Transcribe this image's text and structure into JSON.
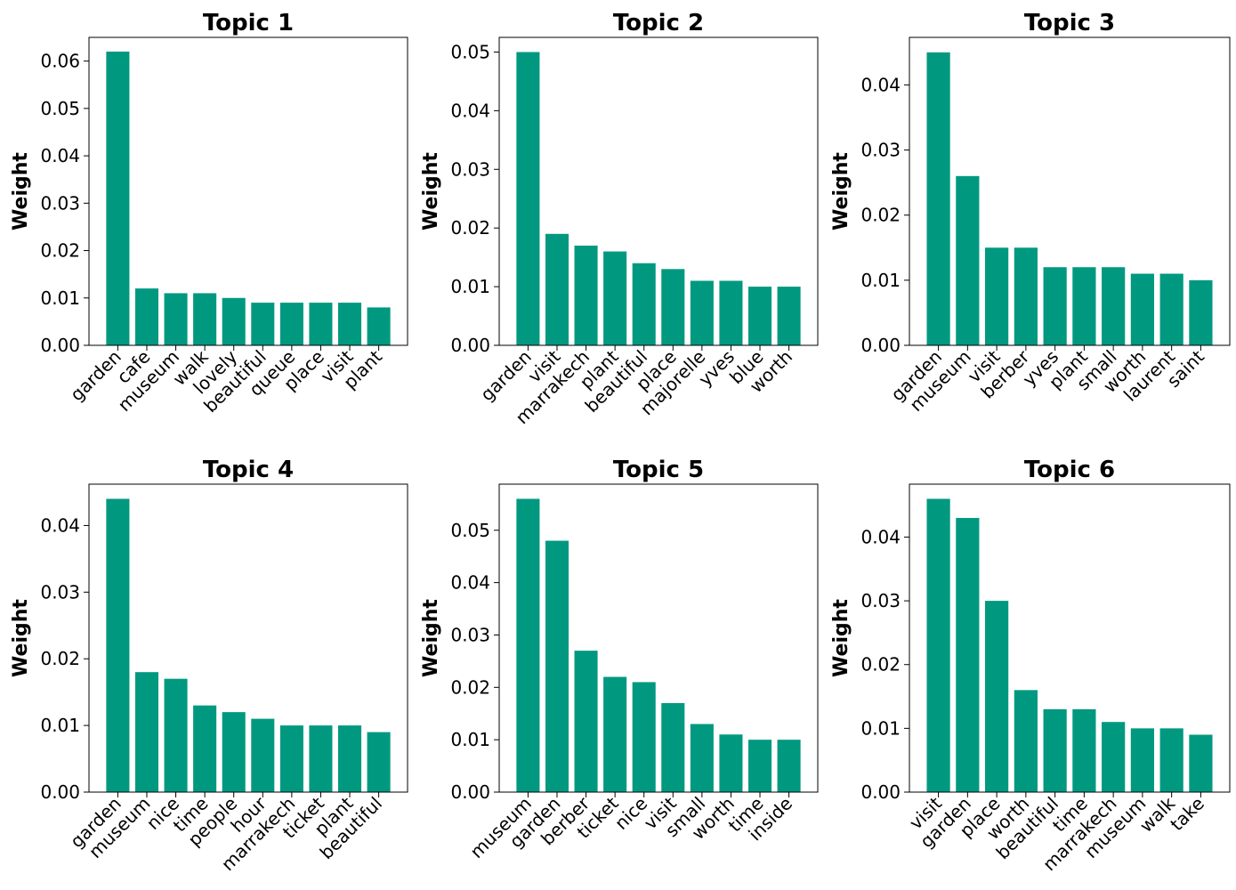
{
  "figure": {
    "bar_color": "#009980"
  },
  "chart_data": [
    {
      "type": "bar",
      "title": "Topic 1",
      "xlabel": "",
      "ylabel": "Weight",
      "ylim": [
        0,
        0.065
      ],
      "yticks": [
        "0.00",
        "0.01",
        "0.02",
        "0.03",
        "0.04",
        "0.05",
        "0.06"
      ],
      "categories": [
        "garden",
        "cafe",
        "museum",
        "walk",
        "lovely",
        "beautiful",
        "queue",
        "place",
        "visit",
        "plant"
      ],
      "values": [
        0.062,
        0.012,
        0.011,
        0.011,
        0.01,
        0.009,
        0.009,
        0.009,
        0.009,
        0.008
      ]
    },
    {
      "type": "bar",
      "title": "Topic 2",
      "xlabel": "",
      "ylabel": "Weight",
      "ylim": [
        0,
        0.0525
      ],
      "yticks": [
        "0.00",
        "0.01",
        "0.02",
        "0.03",
        "0.04",
        "0.05"
      ],
      "categories": [
        "garden",
        "visit",
        "marrakech",
        "plant",
        "beautiful",
        "place",
        "majorelle",
        "yves",
        "blue",
        "worth"
      ],
      "values": [
        0.05,
        0.019,
        0.017,
        0.016,
        0.014,
        0.013,
        0.011,
        0.011,
        0.01,
        0.01
      ]
    },
    {
      "type": "bar",
      "title": "Topic 3",
      "xlabel": "",
      "ylabel": "Weight",
      "ylim": [
        0,
        0.0473
      ],
      "yticks": [
        "0.00",
        "0.01",
        "0.02",
        "0.03",
        "0.04"
      ],
      "categories": [
        "garden",
        "museum",
        "visit",
        "berber",
        "yves",
        "plant",
        "small",
        "worth",
        "laurent",
        "saint"
      ],
      "values": [
        0.045,
        0.026,
        0.015,
        0.015,
        0.012,
        0.012,
        0.012,
        0.011,
        0.011,
        0.01
      ]
    },
    {
      "type": "bar",
      "title": "Topic 4",
      "xlabel": "",
      "ylabel": "Weight",
      "ylim": [
        0,
        0.0462
      ],
      "yticks": [
        "0.00",
        "0.01",
        "0.02",
        "0.03",
        "0.04"
      ],
      "categories": [
        "garden",
        "museum",
        "nice",
        "time",
        "people",
        "hour",
        "marrakech",
        "ticket",
        "plant",
        "beautiful"
      ],
      "values": [
        0.044,
        0.018,
        0.017,
        0.013,
        0.012,
        0.011,
        0.01,
        0.01,
        0.01,
        0.009
      ]
    },
    {
      "type": "bar",
      "title": "Topic 5",
      "xlabel": "",
      "ylabel": "Weight",
      "ylim": [
        0,
        0.0588
      ],
      "yticks": [
        "0.00",
        "0.01",
        "0.02",
        "0.03",
        "0.04",
        "0.05"
      ],
      "categories": [
        "museum",
        "garden",
        "berber",
        "ticket",
        "nice",
        "visit",
        "small",
        "worth",
        "time",
        "inside"
      ],
      "values": [
        0.056,
        0.048,
        0.027,
        0.022,
        0.021,
        0.017,
        0.013,
        0.011,
        0.01,
        0.01
      ]
    },
    {
      "type": "bar",
      "title": "Topic 6",
      "xlabel": "",
      "ylabel": "Weight",
      "ylim": [
        0,
        0.0483
      ],
      "yticks": [
        "0.00",
        "0.01",
        "0.02",
        "0.03",
        "0.04"
      ],
      "categories": [
        "visit",
        "garden",
        "place",
        "worth",
        "beautiful",
        "time",
        "marrakech",
        "museum",
        "walk",
        "take"
      ],
      "values": [
        0.046,
        0.043,
        0.03,
        0.016,
        0.013,
        0.013,
        0.011,
        0.01,
        0.01,
        0.009
      ]
    }
  ]
}
